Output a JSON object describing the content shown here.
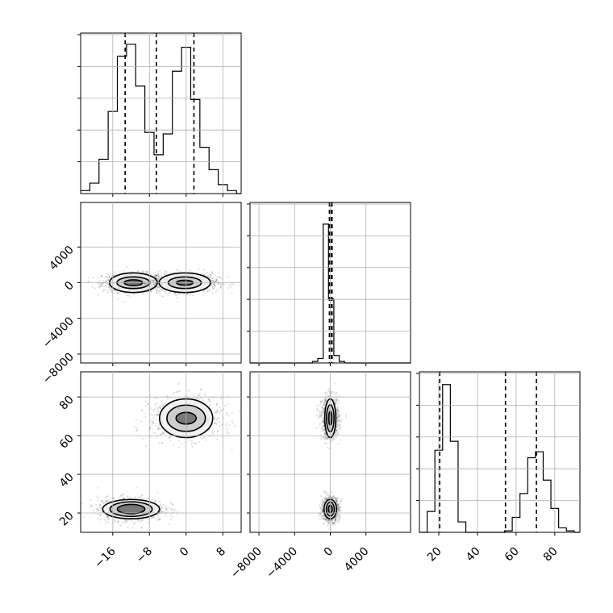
{
  "chart_data": {
    "type": "corner",
    "grid": true,
    "parameters": [
      {
        "ticks": [
          -16,
          -8,
          0,
          8
        ],
        "range": [
          -23,
          12
        ]
      },
      {
        "ticks": [
          -8000,
          -4000,
          0,
          4000
        ],
        "range": [
          -9000,
          9000
        ]
      },
      {
        "ticks": [
          20,
          40,
          60,
          80
        ],
        "range": [
          10,
          93
        ]
      }
    ],
    "histograms": [
      {
        "parameter": 0,
        "bin_edges": [
          -23,
          -21,
          -19,
          -17,
          -15,
          -13,
          -11,
          -9,
          -7,
          -5,
          -3,
          -1,
          1,
          3,
          5,
          7,
          9,
          11,
          12
        ],
        "counts": [
          0.02,
          0.07,
          0.23,
          0.55,
          0.92,
          1.0,
          0.72,
          0.41,
          0.26,
          0.4,
          0.82,
          0.98,
          0.63,
          0.31,
          0.16,
          0.06,
          0.02,
          0.0
        ],
        "quantiles": [
          -13.3,
          -6.5,
          1.7
        ]
      },
      {
        "parameter": 1,
        "bin_edges": [
          -9000,
          -2000,
          -1400,
          -800,
          -200,
          400,
          1000,
          1600,
          2200,
          9000
        ],
        "counts": [
          0.0,
          0.01,
          0.03,
          0.93,
          0.43,
          0.05,
          0.01,
          0.0,
          0.0
        ],
        "quantiles": [
          -100,
          50,
          200
        ]
      },
      {
        "parameter": 2,
        "bin_edges": [
          10,
          14,
          18,
          22,
          26,
          30,
          34,
          38,
          42,
          46,
          50,
          54,
          58,
          62,
          66,
          70,
          74,
          78,
          82,
          86,
          90,
          93
        ],
        "counts": [
          0.0,
          0.14,
          0.55,
          0.99,
          0.61,
          0.07,
          0.0,
          0.0,
          0.0,
          0.0,
          0.0,
          0.01,
          0.1,
          0.26,
          0.5,
          0.54,
          0.35,
          0.16,
          0.03,
          0.01,
          0.0
        ],
        "quantiles": [
          20.5,
          54.5,
          70.5
        ]
      }
    ],
    "scatter_panels": [
      {
        "x_param": 0,
        "y_param": 1,
        "modes": [
          {
            "cx": -11.5,
            "cy": 0,
            "sx": 2.6,
            "sy": 450,
            "contours": [
              [
                5.2,
                1100
              ],
              [
                3.6,
                650
              ],
              [
                2.0,
                320
              ]
            ]
          },
          {
            "cx": -0.3,
            "cy": 0,
            "sx": 2.8,
            "sy": 450,
            "contours": [
              [
                5.6,
                1100
              ],
              [
                3.6,
                650
              ],
              [
                1.8,
                280
              ]
            ]
          }
        ]
      },
      {
        "x_param": 0,
        "y_param": 2,
        "modes": [
          {
            "cx": -12.0,
            "cy": 22,
            "sx": 2.8,
            "sy": 2.6,
            "contours": [
              [
                6.2,
                5.0
              ],
              [
                4.6,
                3.8
              ],
              [
                3.0,
                2.4
              ]
            ]
          },
          {
            "cx": 0.0,
            "cy": 69,
            "sx": 3.0,
            "sy": 4.5,
            "contours": [
              [
                5.8,
                10.0
              ],
              [
                4.2,
                6.8
              ],
              [
                2.2,
                3.0
              ]
            ]
          }
        ]
      },
      {
        "x_param": 1,
        "y_param": 2,
        "modes": [
          {
            "cx": 0,
            "cy": 22,
            "sx": 380,
            "sy": 2.6,
            "contours": [
              [
                700,
                5.0
              ],
              [
                450,
                3.6
              ],
              [
                230,
                2.0
              ]
            ]
          },
          {
            "cx": 0,
            "cy": 69,
            "sx": 380,
            "sy": 4.5,
            "contours": [
              [
                620,
                10.0
              ],
              [
                420,
                7.0
              ],
              [
                180,
                3.5
              ]
            ]
          }
        ]
      }
    ]
  }
}
